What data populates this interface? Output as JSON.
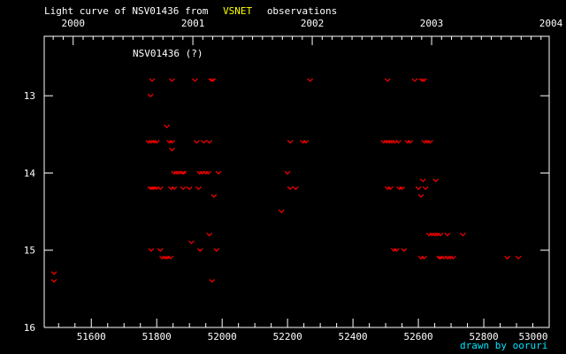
{
  "chart_data": {
    "type": "scatter",
    "title_prefix": "Light curve of NSV01436 from",
    "title_highlight": "VSNET",
    "title_suffix": "observations",
    "legend_label": "NSV01436 (?)",
    "credit": "drawn by ooruri",
    "xlim": [
      51456,
      53000
    ],
    "ylim": [
      16,
      12.23
    ],
    "y_inverted": true,
    "x_ticks": [
      51600,
      51800,
      52000,
      52200,
      52400,
      52600,
      52800,
      53000
    ],
    "x_tick_labels": [
      "51600",
      "51800",
      "52000",
      "52200",
      "52400",
      "52600",
      "52800",
      "53000"
    ],
    "x_minor_step": 50,
    "y_ticks": [
      13,
      14,
      15,
      16
    ],
    "y_tick_labels": [
      "13",
      "14",
      "15",
      "16"
    ],
    "top_years": [
      {
        "label": "2000",
        "jd": 51544.5
      },
      {
        "label": "2001",
        "jd": 51910.5
      },
      {
        "label": "2002",
        "jd": 52275.5
      },
      {
        "label": "2003",
        "jd": 52640.5
      },
      {
        "label": "2004",
        "jd": 53005.5
      }
    ],
    "grid": false,
    "marker": "v (upper limit)",
    "colors": {
      "background": "#000000",
      "axes": "#ffffff",
      "points": "#ff0000",
      "highlight": "#ffff00",
      "credit": "#00e5ff"
    },
    "points": [
      [
        51486,
        15.3
      ],
      [
        51486,
        15.4
      ],
      [
        51786,
        12.8
      ],
      [
        51847,
        12.8
      ],
      [
        51917,
        12.8
      ],
      [
        51967,
        12.8
      ],
      [
        51972,
        12.8
      ],
      [
        52269,
        12.8
      ],
      [
        52506,
        12.8
      ],
      [
        52589,
        12.8
      ],
      [
        52611,
        12.8
      ],
      [
        52617,
        12.8
      ],
      [
        51781,
        13.0
      ],
      [
        51831,
        13.4
      ],
      [
        51775,
        13.6
      ],
      [
        51783,
        13.6
      ],
      [
        51792,
        13.6
      ],
      [
        51800,
        13.6
      ],
      [
        51839,
        13.6
      ],
      [
        51847,
        13.6
      ],
      [
        51922,
        13.6
      ],
      [
        51944,
        13.6
      ],
      [
        51961,
        13.6
      ],
      [
        52208,
        13.6
      ],
      [
        52247,
        13.6
      ],
      [
        52256,
        13.6
      ],
      [
        52494,
        13.6
      ],
      [
        52503,
        13.6
      ],
      [
        52511,
        13.6
      ],
      [
        52519,
        13.6
      ],
      [
        52528,
        13.6
      ],
      [
        52539,
        13.6
      ],
      [
        52567,
        13.6
      ],
      [
        52575,
        13.6
      ],
      [
        52619,
        13.6
      ],
      [
        52628,
        13.6
      ],
      [
        52636,
        13.6
      ],
      [
        51847,
        13.7
      ],
      [
        51853,
        14.0
      ],
      [
        51861,
        14.0
      ],
      [
        51869,
        14.0
      ],
      [
        51878,
        14.0
      ],
      [
        51883,
        14.0
      ],
      [
        51931,
        14.0
      ],
      [
        51939,
        14.0
      ],
      [
        51950,
        14.0
      ],
      [
        51958,
        14.0
      ],
      [
        51989,
        14.0
      ],
      [
        52200,
        14.0
      ],
      [
        52614,
        14.1
      ],
      [
        52653,
        14.1
      ],
      [
        51781,
        14.2
      ],
      [
        51786,
        14.2
      ],
      [
        51792,
        14.2
      ],
      [
        51800,
        14.2
      ],
      [
        51811,
        14.2
      ],
      [
        51844,
        14.2
      ],
      [
        51853,
        14.2
      ],
      [
        51881,
        14.2
      ],
      [
        51900,
        14.2
      ],
      [
        51928,
        14.2
      ],
      [
        52208,
        14.2
      ],
      [
        52225,
        14.2
      ],
      [
        52506,
        14.2
      ],
      [
        52514,
        14.2
      ],
      [
        52542,
        14.2
      ],
      [
        52550,
        14.2
      ],
      [
        52600,
        14.2
      ],
      [
        52622,
        14.2
      ],
      [
        51975,
        14.3
      ],
      [
        52608,
        14.3
      ],
      [
        52181,
        14.5
      ],
      [
        51961,
        14.8
      ],
      [
        52633,
        14.8
      ],
      [
        52642,
        14.8
      ],
      [
        52650,
        14.8
      ],
      [
        52658,
        14.8
      ],
      [
        52667,
        14.8
      ],
      [
        52689,
        14.8
      ],
      [
        52736,
        14.8
      ],
      [
        51906,
        14.9
      ],
      [
        51783,
        15.0
      ],
      [
        51811,
        15.0
      ],
      [
        51933,
        15.0
      ],
      [
        51983,
        15.0
      ],
      [
        52525,
        15.0
      ],
      [
        52533,
        15.0
      ],
      [
        52556,
        15.0
      ],
      [
        51817,
        15.1
      ],
      [
        51825,
        15.1
      ],
      [
        51833,
        15.1
      ],
      [
        51842,
        15.1
      ],
      [
        52608,
        15.1
      ],
      [
        52617,
        15.1
      ],
      [
        52664,
        15.1
      ],
      [
        52669,
        15.1
      ],
      [
        52678,
        15.1
      ],
      [
        52689,
        15.1
      ],
      [
        52697,
        15.1
      ],
      [
        52706,
        15.1
      ],
      [
        52872,
        15.1
      ],
      [
        52906,
        15.1
      ],
      [
        51969,
        15.4
      ]
    ]
  }
}
